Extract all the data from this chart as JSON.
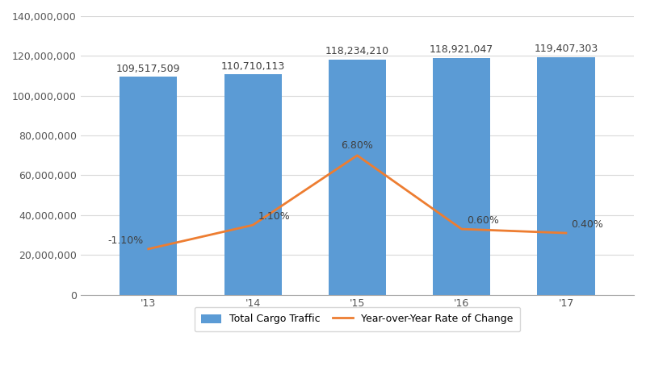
{
  "years": [
    "'13",
    "'14",
    "'15",
    "'16",
    "'17"
  ],
  "cargo_values": [
    109517509,
    110710113,
    118234210,
    118921047,
    119407303
  ],
  "bar_labels": [
    "109,517,509",
    "110,710,113",
    "118,234,210",
    "118,921,047",
    "119,407,303"
  ],
  "yoy_labels": [
    "-1.10%",
    "1.10%",
    "6.80%",
    "0.60%",
    "0.40%"
  ],
  "line_y_values": [
    23000000,
    35000000,
    70000000,
    33000000,
    31000000
  ],
  "bar_color": "#5B9BD5",
  "line_color": "#ED7D31",
  "bar_width": 0.55,
  "ylim_left": [
    0,
    140000000
  ],
  "yticks_left": [
    0,
    20000000,
    40000000,
    60000000,
    80000000,
    100000000,
    120000000,
    140000000
  ],
  "background_color": "#FFFFFF",
  "grid_color": "#D9D9D9",
  "legend_bar_label": "Total Cargo Traffic",
  "legend_line_label": "Year-over-Year Rate of Change",
  "label_fontsize": 9,
  "tick_fontsize": 9
}
